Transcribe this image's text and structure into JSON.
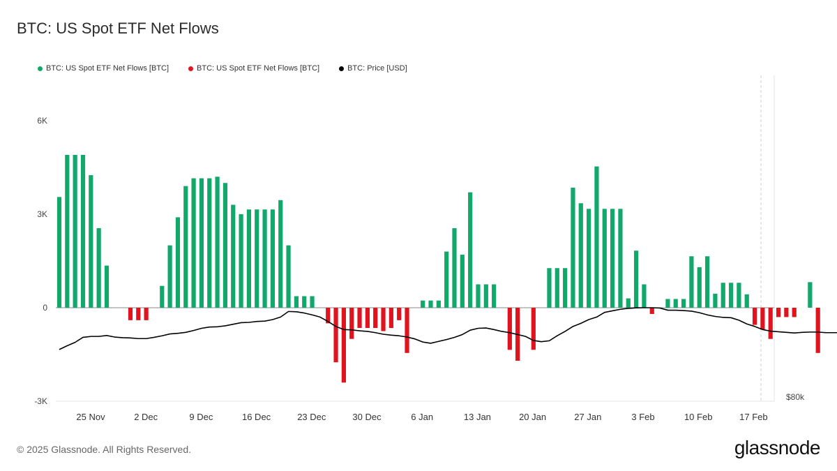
{
  "header": {
    "title": "BTC: US Spot ETF Net Flows"
  },
  "legend": [
    {
      "label": "BTC: US Spot ETF Net Flows [BTC]",
      "color": "#13a86b"
    },
    {
      "label": "BTC: US Spot ETF Net Flows [BTC]",
      "color": "#e0141e"
    },
    {
      "label": "BTC: Price [USD]",
      "color": "#000000"
    }
  ],
  "footer": {
    "copyright": "© 2025 Glassnode. All Rights Reserved.",
    "brand": "glassnode"
  },
  "chart_data": {
    "type": "bar",
    "title": "BTC: US Spot ETF Net Flows",
    "y_ticks": [
      "6K",
      "3K",
      "0",
      "-3K"
    ],
    "y_tick_values": [
      6000,
      3000,
      0,
      -3000
    ],
    "ylim": [
      -3000,
      7500
    ],
    "right_axis_label": "$80k",
    "x_ticks": [
      "25 Nov",
      "2 Dec",
      "9 Dec",
      "16 Dec",
      "23 Dec",
      "30 Dec",
      "6 Jan",
      "13 Jan",
      "20 Jan",
      "27 Jan",
      "3 Feb",
      "10 Feb",
      "17 Feb"
    ],
    "positive_color": "#13a86b",
    "negative_color": "#e0141e",
    "price_color": "#000000",
    "series": [
      {
        "name": "BTC: US Spot ETF Net Flows [BTC]",
        "values": [
          3550,
          4900,
          4900,
          4900,
          4250,
          2550,
          1350,
          0,
          0,
          -400,
          -400,
          -400,
          0,
          700,
          2000,
          2900,
          3900,
          4150,
          4150,
          4150,
          4200,
          4000,
          3300,
          3000,
          3150,
          3150,
          3150,
          3150,
          3450,
          2000,
          370,
          370,
          370,
          0,
          -500,
          -1750,
          -2400,
          -1000,
          -650,
          -650,
          -650,
          -750,
          -650,
          -400,
          -1450,
          0,
          230,
          230,
          230,
          1800,
          2550,
          1700,
          3700,
          750,
          750,
          750,
          0,
          -1350,
          -1700,
          0,
          -1350,
          0,
          1270,
          1270,
          1270,
          3850,
          3350,
          3170,
          4530,
          3170,
          3170,
          3170,
          300,
          1830,
          750,
          -200,
          0,
          280,
          280,
          280,
          1650,
          1300,
          1650,
          450,
          800,
          800,
          800,
          430,
          -550,
          -700,
          -1000,
          -300,
          -300,
          -300,
          0,
          820,
          -1450
        ]
      },
      {
        "name": "BTC: Price [USD]",
        "values": [
          -1340,
          -1220,
          -1110,
          -950,
          -920,
          -920,
          -890,
          -940,
          -960,
          -970,
          -990,
          -990,
          -950,
          -900,
          -840,
          -820,
          -790,
          -730,
          -660,
          -620,
          -610,
          -580,
          -530,
          -480,
          -470,
          -440,
          -430,
          -380,
          -300,
          -120,
          -130,
          -170,
          -230,
          -300,
          -440,
          -600,
          -700,
          -710,
          -740,
          -760,
          -800,
          -850,
          -880,
          -900,
          -940,
          -1000,
          -1100,
          -1140,
          -1080,
          -1020,
          -950,
          -860,
          -720,
          -660,
          -650,
          -700,
          -760,
          -800,
          -860,
          -920,
          -1050,
          -1090,
          -1060,
          -900,
          -760,
          -600,
          -500,
          -380,
          -300,
          -150,
          -100,
          -50,
          -20,
          -5,
          0,
          0,
          -10,
          -80,
          -80,
          -90,
          -110,
          -160,
          -230,
          -280,
          -310,
          -320,
          -400,
          -520,
          -600,
          -700,
          -750,
          -770,
          -790,
          -810,
          -790,
          -780,
          -780,
          -800,
          -800,
          -800
        ]
      }
    ]
  }
}
